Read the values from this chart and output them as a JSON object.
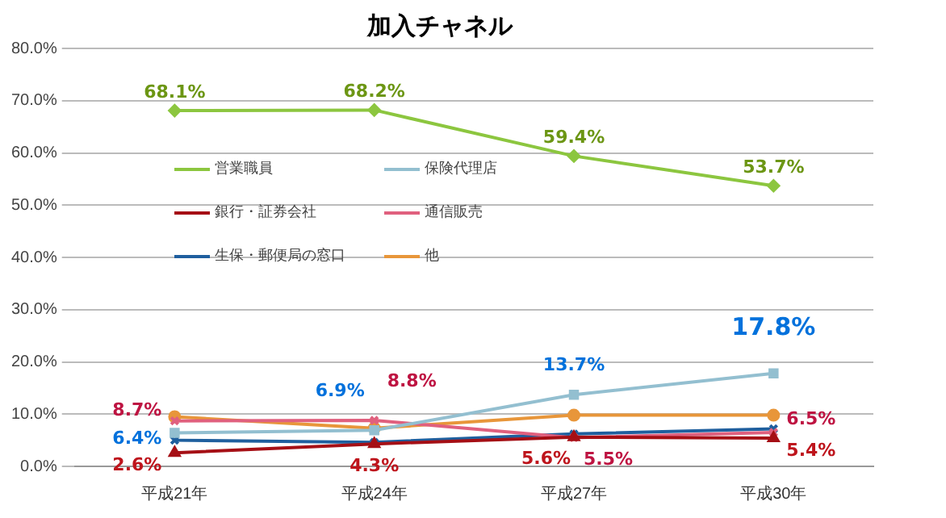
{
  "chart_data": {
    "type": "line",
    "title": "加入チャネル",
    "categories": [
      "平成21年",
      "平成24年",
      "平成27年",
      "平成30年"
    ],
    "ylim": [
      0,
      80
    ],
    "yticks": [
      {
        "value": 0,
        "label": "0.0%"
      },
      {
        "value": 10,
        "label": "10.0%"
      },
      {
        "value": 20,
        "label": "20.0%"
      },
      {
        "value": 30,
        "label": "30.0%"
      },
      {
        "value": 40,
        "label": "40.0%"
      },
      {
        "value": 50,
        "label": "50.0%"
      },
      {
        "value": 60,
        "label": "60.0%"
      },
      {
        "value": 70,
        "label": "70.0%"
      },
      {
        "value": 80,
        "label": "80.0%"
      }
    ],
    "grid": "y",
    "legend": "left",
    "series": [
      {
        "name": "営業職員",
        "color": "#8cc63f",
        "marker": "diamond",
        "values": [
          68.1,
          68.2,
          59.4,
          53.7
        ],
        "value_labels": [
          "68.1%",
          "68.2%",
          "59.4%",
          "53.7%"
        ]
      },
      {
        "name": "保険代理店",
        "color": "#93bfd0",
        "marker": "square",
        "values": [
          6.4,
          6.9,
          13.7,
          17.8
        ],
        "value_labels": [
          "6.4%",
          "6.9%",
          "13.7%",
          "17.8%"
        ]
      },
      {
        "name": "銀行・証券会社",
        "color": "#a50f15",
        "marker": "triangle",
        "values": [
          2.6,
          4.3,
          5.6,
          5.4
        ],
        "value_labels": [
          "2.6%",
          "4.3%",
          "5.6%",
          "5.4%"
        ]
      },
      {
        "name": "通信販売",
        "color": "#e0607e",
        "marker": "cross",
        "values": [
          8.7,
          8.8,
          5.5,
          6.5
        ],
        "value_labels": [
          "8.7%",
          "8.8%",
          "5.5%",
          "6.5%"
        ]
      },
      {
        "name": "生保・郵便局の窓口",
        "color": "#1f5f9e",
        "marker": "cross",
        "values": [
          5.0,
          4.6,
          6.2,
          7.2
        ]
      },
      {
        "name": "他",
        "color": "#e8963a",
        "marker": "circle",
        "values": [
          9.5,
          7.3,
          9.8,
          9.8
        ]
      }
    ]
  }
}
